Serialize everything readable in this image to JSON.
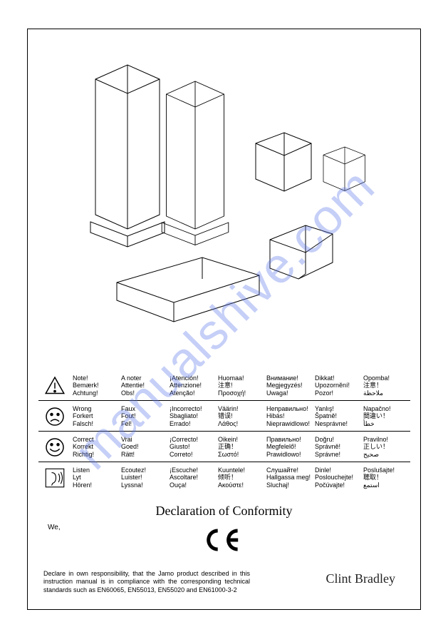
{
  "watermark": "manualshive.com",
  "iconRows": [
    {
      "icon": "warning",
      "cols": [
        [
          "Note!",
          "Bemærk!",
          "Achtung!"
        ],
        [
          "A noter",
          "Attentie!",
          "Obs!"
        ],
        [
          "¡Atención!",
          "Attenzione!",
          "Atenção!"
        ],
        [
          "Huomaa!",
          "注意!",
          "Προσοχή!"
        ],
        [
          "Внимание!",
          "Megjegyzés!",
          "Uwaga!"
        ],
        [
          "Dikkat!",
          "Upozornění!",
          "Pozor!"
        ],
        [
          "Opomba!",
          "注意！",
          "ملاحظة"
        ]
      ]
    },
    {
      "icon": "sad",
      "cols": [
        [
          "Wrong",
          "Forkert",
          "Falsch!"
        ],
        [
          "Faux",
          "Fout!",
          "Fel!"
        ],
        [
          "¡Incorrecto!",
          "Sbagliato!",
          "Errado!"
        ],
        [
          "Väärin!",
          "错误!",
          "Λάθος!"
        ],
        [
          "Неправильно!",
          "Hibás!",
          "Nieprawidlowo!"
        ],
        [
          "Yanlış!",
          "Špatně!",
          "Nesprávne!"
        ],
        [
          "Napačno!",
          "間違い！",
          "خطأ"
        ]
      ]
    },
    {
      "icon": "happy",
      "cols": [
        [
          "Correct",
          "Korrekt",
          "Richtig!"
        ],
        [
          "Vrai",
          "Goed!",
          "Rätt!"
        ],
        [
          "¡Correcto!",
          "Giusto!",
          "Correto!"
        ],
        [
          "Oikein!",
          "正确！",
          "Σωστό!"
        ],
        [
          "Правильно!",
          "Megfelelő!",
          "Prawidlowo!"
        ],
        [
          "Doğru!",
          "Správně!",
          "Správne!"
        ],
        [
          "Pravilno!",
          "正しい！",
          "صحيح"
        ]
      ]
    },
    {
      "icon": "listen",
      "cols": [
        [
          "Listen",
          "Lyt",
          "Hören!"
        ],
        [
          "Ecoutez!",
          "Luister!",
          "Lyssna!"
        ],
        [
          "¡Escuche!",
          "Ascoltare!",
          "Ouça!"
        ],
        [
          "Kuuntele!",
          "倾听！",
          "Ακούστε!"
        ],
        [
          "Слушайте!",
          "Hallgassa meg!",
          "Sluchaj!"
        ],
        [
          "Dinle!",
          "Poslouchejte!",
          "Počúvajte!"
        ],
        [
          "Poslušajte!",
          "聴取！",
          "استمع"
        ]
      ]
    }
  ],
  "declaration": {
    "title": "Declaration of Conformity",
    "we": "We,",
    "body": "Declare in own responsibility, that the Jamo product described in this instruction manual is in compliance with the corresponding technical standards such as EN60065, EN55013, EN55020 and EN61000-3-2",
    "signature": "Clint Bradley"
  }
}
